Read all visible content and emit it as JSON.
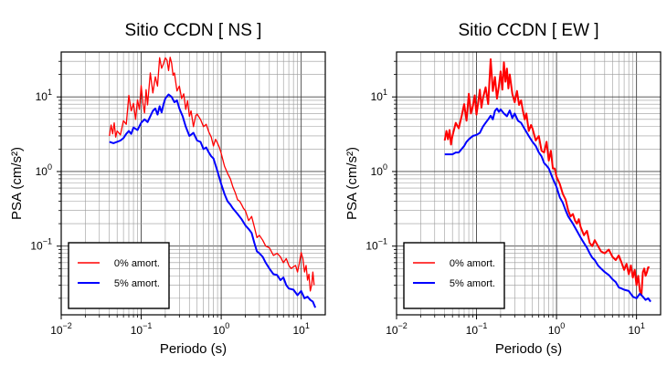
{
  "chart_data": [
    {
      "type": "line",
      "title": "Sitio CCDN [ NS ]",
      "xlabel": "Periodo (s)",
      "ylabel": "PSA (cm/s²)",
      "xscale": "log",
      "yscale": "log",
      "xlim": [
        0.01,
        20
      ],
      "ylim": [
        0.012,
        40
      ],
      "grid": true,
      "legend_position": "bottom-left",
      "x_ticks": [
        {
          "value": 0.01,
          "label_base": "10",
          "label_exp": "−2"
        },
        {
          "value": 0.1,
          "label_base": "10",
          "label_exp": "−1"
        },
        {
          "value": 1,
          "label_base": "10",
          "label_exp": "0"
        },
        {
          "value": 10,
          "label_base": "10",
          "label_exp": "1"
        }
      ],
      "y_ticks": [
        {
          "value": 0.1,
          "label_base": "10",
          "label_exp": "−1"
        },
        {
          "value": 1,
          "label_base": "10",
          "label_exp": "0"
        },
        {
          "value": 10,
          "label_base": "10",
          "label_exp": "1"
        }
      ],
      "series": [
        {
          "name": "0% amort.",
          "color": "#ff0000",
          "x": [
            0.04,
            0.042,
            0.044,
            0.046,
            0.048,
            0.05,
            0.055,
            0.06,
            0.065,
            0.07,
            0.075,
            0.08,
            0.085,
            0.09,
            0.095,
            0.1,
            0.105,
            0.11,
            0.115,
            0.12,
            0.13,
            0.14,
            0.15,
            0.16,
            0.17,
            0.18,
            0.19,
            0.2,
            0.21,
            0.22,
            0.23,
            0.24,
            0.25,
            0.26,
            0.28,
            0.3,
            0.32,
            0.34,
            0.36,
            0.38,
            0.4,
            0.42,
            0.45,
            0.48,
            0.5,
            0.55,
            0.6,
            0.65,
            0.7,
            0.75,
            0.8,
            0.85,
            0.9,
            0.95,
            1.0,
            1.1,
            1.2,
            1.3,
            1.4,
            1.5,
            1.6,
            1.7,
            1.8,
            1.9,
            2.0,
            2.2,
            2.4,
            2.6,
            2.8,
            3.0,
            3.3,
            3.6,
            4.0,
            4.5,
            5.0,
            5.5,
            6.0,
            6.5,
            7.0,
            7.5,
            8.0,
            8.5,
            9.0,
            9.5,
            10,
            10.5,
            11,
            11.5,
            12,
            12.5,
            13,
            13.5,
            14,
            14.5
          ],
          "y": [
            3.0,
            4.2,
            3.2,
            4.5,
            2.9,
            3.5,
            3.1,
            4.8,
            4.3,
            10.5,
            6.5,
            8.2,
            5.0,
            9.1,
            6.8,
            14.2,
            8.3,
            6.1,
            12.5,
            7.8,
            21.0,
            11.3,
            18.6,
            14.0,
            33.5,
            24.2,
            28.0,
            33.4,
            31.0,
            22.5,
            34.0,
            28.5,
            19.5,
            21.0,
            12.0,
            14.0,
            9.5,
            11.0,
            6.8,
            8.9,
            5.5,
            6.5,
            4.0,
            5.6,
            5.9,
            5.0,
            4.0,
            4.3,
            3.4,
            2.9,
            2.2,
            2.7,
            2.4,
            2.1,
            1.75,
            1.18,
            0.95,
            0.8,
            0.62,
            0.52,
            0.42,
            0.4,
            0.36,
            0.32,
            0.3,
            0.22,
            0.25,
            0.18,
            0.13,
            0.14,
            0.12,
            0.1,
            0.095,
            0.075,
            0.08,
            0.072,
            0.06,
            0.068,
            0.055,
            0.05,
            0.053,
            0.055,
            0.045,
            0.06,
            0.082,
            0.068,
            0.045,
            0.055,
            0.035,
            0.042,
            0.025,
            0.03,
            0.045,
            0.03
          ]
        },
        {
          "name": "5% amort.",
          "color": "#0000ff",
          "x": [
            0.04,
            0.045,
            0.05,
            0.055,
            0.06,
            0.065,
            0.07,
            0.075,
            0.08,
            0.09,
            0.1,
            0.11,
            0.12,
            0.13,
            0.14,
            0.15,
            0.16,
            0.17,
            0.18,
            0.19,
            0.2,
            0.22,
            0.24,
            0.26,
            0.28,
            0.3,
            0.33,
            0.36,
            0.4,
            0.45,
            0.5,
            0.55,
            0.6,
            0.65,
            0.7,
            0.75,
            0.8,
            0.9,
            1.0,
            1.1,
            1.2,
            1.3,
            1.4,
            1.6,
            1.8,
            2.0,
            2.2,
            2.4,
            2.6,
            2.8,
            3.0,
            3.3,
            3.6,
            4.0,
            4.5,
            5.0,
            5.5,
            6.0,
            6.5,
            7.0,
            8.0,
            9.0,
            10,
            11,
            12,
            13,
            14,
            15
          ],
          "y": [
            2.5,
            2.4,
            2.5,
            2.6,
            2.8,
            3.2,
            3.5,
            3.2,
            3.9,
            3.6,
            4.5,
            5.0,
            4.6,
            5.5,
            6.5,
            7.0,
            5.8,
            7.5,
            6.2,
            8.0,
            9.5,
            10.8,
            10.0,
            8.5,
            9.0,
            7.0,
            5.5,
            4.0,
            3.0,
            3.3,
            2.6,
            2.5,
            2.0,
            2.1,
            1.8,
            1.6,
            1.5,
            1.0,
            0.68,
            0.5,
            0.4,
            0.36,
            0.32,
            0.27,
            0.23,
            0.19,
            0.17,
            0.15,
            0.11,
            0.085,
            0.08,
            0.072,
            0.06,
            0.05,
            0.042,
            0.041,
            0.035,
            0.038,
            0.03,
            0.027,
            0.026,
            0.022,
            0.025,
            0.02,
            0.021,
            0.019,
            0.018,
            0.015
          ]
        }
      ]
    },
    {
      "type": "line",
      "title": "Sitio CCDN [ EW ]",
      "xlabel": "Periodo (s)",
      "ylabel": "PSA (cm/s²)",
      "xscale": "log",
      "yscale": "log",
      "xlim": [
        0.01,
        20
      ],
      "ylim": [
        0.012,
        40
      ],
      "grid": true,
      "legend_position": "bottom-left",
      "x_ticks": [
        {
          "value": 0.01,
          "label_base": "10",
          "label_exp": "−2"
        },
        {
          "value": 0.1,
          "label_base": "10",
          "label_exp": "−1"
        },
        {
          "value": 1,
          "label_base": "10",
          "label_exp": "0"
        },
        {
          "value": 10,
          "label_base": "10",
          "label_exp": "1"
        }
      ],
      "y_ticks": [
        {
          "value": 0.1,
          "label_base": "10",
          "label_exp": "−1"
        },
        {
          "value": 1,
          "label_base": "10",
          "label_exp": "0"
        },
        {
          "value": 10,
          "label_base": "10",
          "label_exp": "1"
        }
      ],
      "series": [
        {
          "name": "0% amort.",
          "color": "#ff0000",
          "x": [
            0.04,
            0.042,
            0.044,
            0.046,
            0.048,
            0.05,
            0.055,
            0.06,
            0.065,
            0.07,
            0.075,
            0.08,
            0.085,
            0.09,
            0.095,
            0.1,
            0.105,
            0.11,
            0.115,
            0.12,
            0.13,
            0.14,
            0.15,
            0.16,
            0.17,
            0.18,
            0.19,
            0.2,
            0.21,
            0.22,
            0.23,
            0.24,
            0.25,
            0.26,
            0.28,
            0.3,
            0.32,
            0.34,
            0.36,
            0.38,
            0.4,
            0.42,
            0.45,
            0.48,
            0.5,
            0.55,
            0.6,
            0.65,
            0.7,
            0.75,
            0.8,
            0.85,
            0.9,
            0.95,
            1.0,
            1.1,
            1.2,
            1.3,
            1.4,
            1.5,
            1.6,
            1.7,
            1.8,
            1.9,
            2.0,
            2.2,
            2.4,
            2.6,
            2.8,
            3.0,
            3.3,
            3.6,
            4.0,
            4.5,
            5.0,
            5.5,
            6.0,
            6.5,
            7.0,
            7.5,
            8.0,
            8.5,
            9.0,
            9.5,
            10,
            10.5,
            11,
            11.5,
            12,
            12.5,
            13,
            13.5,
            14,
            14.5
          ],
          "y": [
            2.6,
            3.5,
            2.7,
            3.6,
            2.3,
            3.0,
            4.5,
            3.8,
            5.5,
            8.0,
            4.8,
            11.0,
            6.0,
            7.5,
            10.5,
            5.8,
            8.5,
            12.5,
            7.2,
            9.5,
            13.5,
            8.0,
            32.0,
            12.0,
            18.5,
            9.5,
            14.0,
            22.0,
            12.5,
            29.0,
            16.0,
            24.0,
            13.0,
            20.0,
            11.0,
            8.5,
            12.0,
            7.8,
            9.0,
            6.5,
            5.0,
            6.0,
            3.5,
            4.2,
            3.8,
            2.6,
            3.0,
            1.9,
            1.8,
            2.5,
            1.4,
            1.9,
            1.1,
            1.1,
            0.85,
            0.68,
            0.5,
            0.42,
            0.3,
            0.25,
            0.27,
            0.22,
            0.2,
            0.23,
            0.18,
            0.14,
            0.16,
            0.11,
            0.1,
            0.12,
            0.1,
            0.085,
            0.08,
            0.09,
            0.072,
            0.065,
            0.075,
            0.06,
            0.048,
            0.058,
            0.042,
            0.055,
            0.038,
            0.048,
            0.03,
            0.04,
            0.025,
            0.022,
            0.045,
            0.05,
            0.04,
            0.045,
            0.052,
            0.052
          ]
        },
        {
          "name": "5% amort.",
          "color": "#0000ff",
          "x": [
            0.04,
            0.045,
            0.05,
            0.055,
            0.06,
            0.065,
            0.07,
            0.075,
            0.08,
            0.09,
            0.1,
            0.11,
            0.12,
            0.13,
            0.14,
            0.15,
            0.16,
            0.17,
            0.18,
            0.19,
            0.2,
            0.22,
            0.24,
            0.26,
            0.28,
            0.3,
            0.33,
            0.36,
            0.4,
            0.45,
            0.5,
            0.55,
            0.6,
            0.65,
            0.7,
            0.75,
            0.8,
            0.9,
            1.0,
            1.1,
            1.2,
            1.3,
            1.4,
            1.6,
            1.8,
            2.0,
            2.2,
            2.4,
            2.6,
            2.8,
            3.0,
            3.3,
            3.6,
            4.0,
            4.5,
            5.0,
            5.5,
            6.0,
            6.5,
            7.0,
            8.0,
            9.0,
            10,
            11,
            12,
            13,
            14,
            15
          ],
          "y": [
            1.7,
            1.7,
            1.7,
            1.8,
            1.8,
            2.0,
            2.2,
            2.5,
            2.7,
            3.0,
            3.1,
            3.3,
            4.0,
            4.5,
            5.0,
            5.6,
            5.0,
            6.5,
            7.0,
            6.3,
            6.8,
            6.0,
            5.5,
            6.6,
            5.2,
            6.0,
            4.8,
            4.5,
            3.7,
            3.0,
            2.5,
            2.2,
            1.8,
            1.6,
            1.3,
            1.2,
            1.1,
            0.8,
            0.62,
            0.45,
            0.38,
            0.3,
            0.25,
            0.2,
            0.16,
            0.13,
            0.11,
            0.095,
            0.08,
            0.07,
            0.065,
            0.055,
            0.05,
            0.045,
            0.041,
            0.036,
            0.033,
            0.028,
            0.027,
            0.026,
            0.025,
            0.021,
            0.02,
            0.023,
            0.021,
            0.019,
            0.02,
            0.018
          ]
        }
      ]
    }
  ]
}
